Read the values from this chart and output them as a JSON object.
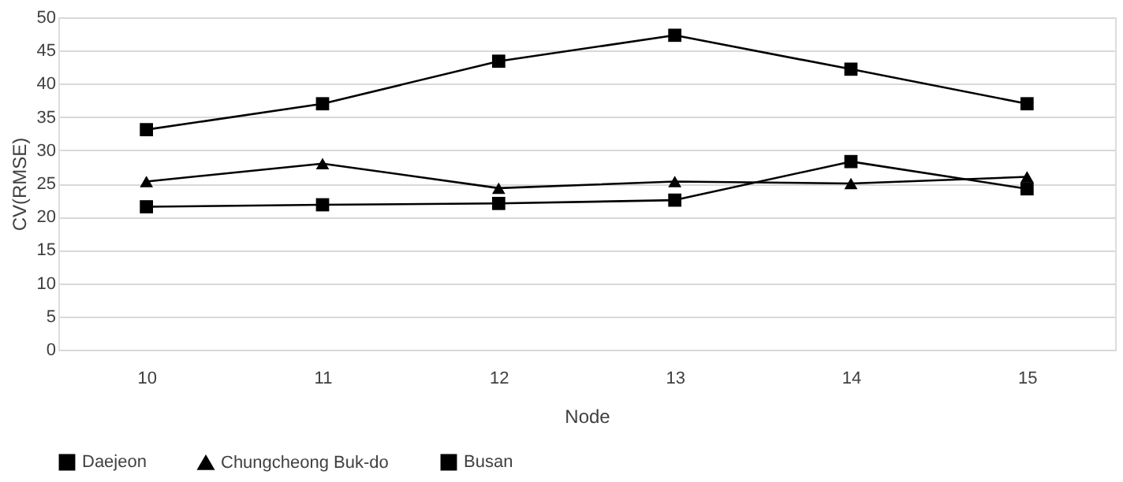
{
  "chart_data": {
    "type": "line",
    "xlabel": "Node",
    "ylabel": "CV(RMSE)",
    "categories": [
      "10",
      "11",
      "12",
      "13",
      "14",
      "15"
    ],
    "series": [
      {
        "name": "Daejeon",
        "color": "#000000",
        "marker": "square",
        "values": [
          21.5,
          21.8,
          22,
          22.5,
          28.3,
          24.2
        ]
      },
      {
        "name": "Chungcheong Buk-do",
        "color": "#000000",
        "marker": "triangle",
        "values": [
          25.3,
          28,
          24.3,
          25.3,
          25,
          26
        ]
      },
      {
        "name": "Busan",
        "color": "#000000",
        "marker": "square",
        "values": [
          33.1,
          37,
          43.4,
          47.3,
          42.2,
          37
        ]
      }
    ],
    "ylim": [
      0,
      50
    ],
    "yticks": [
      0,
      5,
      10,
      15,
      20,
      25,
      30,
      35,
      40,
      45,
      50
    ],
    "grid": "y",
    "legend": "bottom",
    "line_style": "solid"
  }
}
